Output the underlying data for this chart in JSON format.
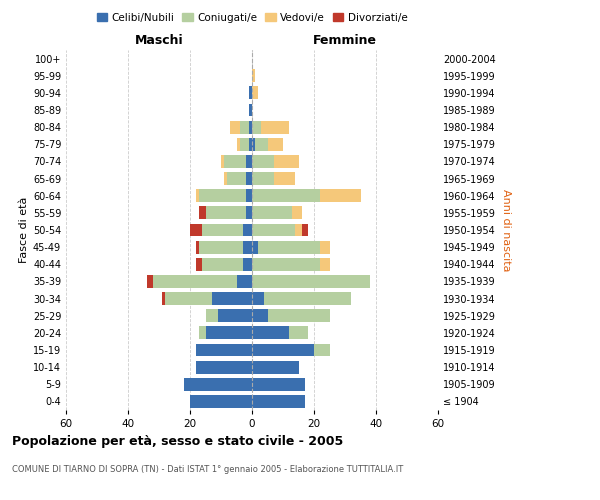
{
  "age_groups": [
    "0-4",
    "5-9",
    "10-14",
    "15-19",
    "20-24",
    "25-29",
    "30-34",
    "35-39",
    "40-44",
    "45-49",
    "50-54",
    "55-59",
    "60-64",
    "65-69",
    "70-74",
    "75-79",
    "80-84",
    "85-89",
    "90-94",
    "95-99",
    "100+"
  ],
  "birth_years": [
    "2000-2004",
    "1995-1999",
    "1990-1994",
    "1985-1989",
    "1980-1984",
    "1975-1979",
    "1970-1974",
    "1965-1969",
    "1960-1964",
    "1955-1959",
    "1950-1954",
    "1945-1949",
    "1940-1944",
    "1935-1939",
    "1930-1934",
    "1925-1929",
    "1920-1924",
    "1915-1919",
    "1910-1914",
    "1905-1909",
    "≤ 1904"
  ],
  "colors": {
    "celibi": "#3a6faf",
    "coniugati": "#b5cfa0",
    "vedovi": "#f5c87a",
    "divorziati": "#c0392b"
  },
  "maschi": {
    "celibi": [
      20,
      22,
      18,
      18,
      15,
      11,
      13,
      5,
      3,
      3,
      3,
      2,
      2,
      2,
      2,
      1,
      1,
      1,
      1,
      0,
      0
    ],
    "coniugati": [
      0,
      0,
      0,
      0,
      2,
      4,
      15,
      27,
      13,
      14,
      13,
      13,
      15,
      6,
      7,
      3,
      3,
      0,
      0,
      0,
      0
    ],
    "vedovi": [
      0,
      0,
      0,
      0,
      0,
      0,
      0,
      0,
      0,
      0,
      0,
      0,
      1,
      1,
      1,
      1,
      3,
      0,
      0,
      0,
      0
    ],
    "divorziati": [
      0,
      0,
      0,
      0,
      0,
      0,
      1,
      2,
      2,
      1,
      4,
      2,
      0,
      0,
      0,
      0,
      0,
      0,
      0,
      0,
      0
    ]
  },
  "femmine": {
    "celibi": [
      17,
      17,
      15,
      20,
      12,
      5,
      4,
      0,
      0,
      2,
      0,
      0,
      0,
      0,
      0,
      1,
      0,
      0,
      0,
      0,
      0
    ],
    "coniugati": [
      0,
      0,
      0,
      5,
      6,
      20,
      28,
      38,
      22,
      20,
      14,
      13,
      22,
      7,
      7,
      4,
      3,
      0,
      0,
      0,
      0
    ],
    "vedovi": [
      0,
      0,
      0,
      0,
      0,
      0,
      0,
      0,
      3,
      3,
      2,
      3,
      13,
      7,
      8,
      5,
      9,
      0,
      2,
      1,
      0
    ],
    "divorziati": [
      0,
      0,
      0,
      0,
      0,
      0,
      0,
      0,
      0,
      0,
      2,
      0,
      0,
      0,
      0,
      0,
      0,
      0,
      0,
      0,
      0
    ]
  },
  "title": "Popolazione per età, sesso e stato civile - 2005",
  "subtitle": "COMUNE DI TIARNO DI SOPRA (TN) - Dati ISTAT 1° gennaio 2005 - Elaborazione TUTTITALIA.IT",
  "xlabel_left": "Maschi",
  "xlabel_right": "Femmine",
  "ylabel_left": "Fasce di età",
  "ylabel_right": "Anni di nascita",
  "legend_labels": [
    "Celibi/Nubili",
    "Coniugati/e",
    "Vedovi/e",
    "Divorziati/e"
  ],
  "xlim": 60,
  "background_color": "#ffffff",
  "grid_color": "#cccccc"
}
